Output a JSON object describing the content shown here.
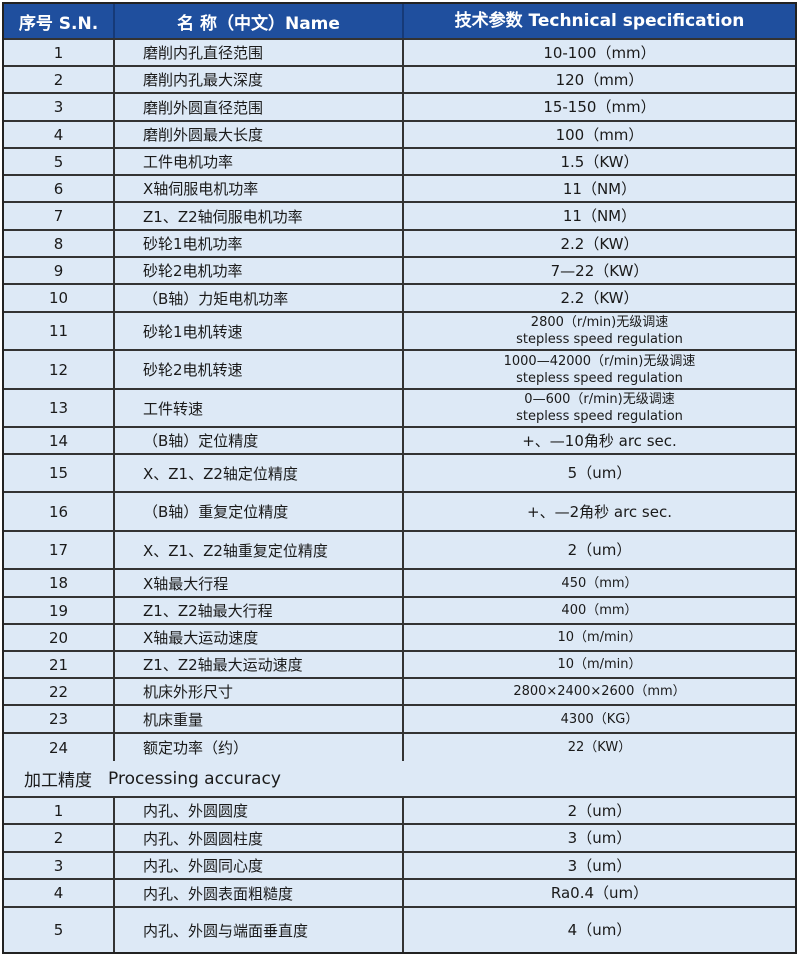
{
  "header": {
    "sn": "序号 S.N.",
    "name": "名 称（中文）Name",
    "spec": "技术参数 Technical specification"
  },
  "specs": [
    {
      "sn": "1",
      "name": "磨削内孔直径范围",
      "spec": [
        "10-100（mm）"
      ]
    },
    {
      "sn": "2",
      "name": "磨削内孔最大深度",
      "spec": [
        "120（mm）"
      ]
    },
    {
      "sn": "3",
      "name": "磨削外圆直径范围",
      "spec": [
        "15-150（mm）"
      ]
    },
    {
      "sn": "4",
      "name": "磨削外圆最大长度",
      "spec": [
        "100（mm）"
      ]
    },
    {
      "sn": "5",
      "name": "工件电机功率",
      "spec": [
        "1.5（KW）"
      ]
    },
    {
      "sn": "6",
      "name": "X轴伺服电机功率",
      "spec": [
        "11（NM）"
      ]
    },
    {
      "sn": "7",
      "name": "Z1、Z2轴伺服电机功率",
      "spec": [
        "11（NM）"
      ]
    },
    {
      "sn": "8",
      "name": "砂轮1电机功率",
      "spec": [
        "2.2（KW）"
      ]
    },
    {
      "sn": "9",
      "name": "砂轮2电机功率",
      "spec": [
        "7—22（KW）"
      ]
    },
    {
      "sn": "10",
      "name": "（B轴）力矩电机功率",
      "spec": [
        "2.2（KW）"
      ]
    },
    {
      "sn": "11",
      "name": "砂轮1电机转速",
      "spec": [
        "2800（r/min)无级调速",
        "stepless speed regulation"
      ]
    },
    {
      "sn": "12",
      "name": "砂轮2电机转速",
      "spec": [
        "1000—42000（r/min)无级调速",
        "stepless speed regulation"
      ]
    },
    {
      "sn": "13",
      "name": "工件转速",
      "spec": [
        "0—600（r/min)无级调速",
        "stepless speed regulation"
      ]
    },
    {
      "sn": "14",
      "name": "（B轴）定位精度",
      "spec": [
        "+、—10角秒 arc sec."
      ]
    },
    {
      "sn": "15",
      "name": "X、Z1、Z2轴定位精度",
      "spec": [
        "5（um）"
      ]
    },
    {
      "sn": "16",
      "name": "（B轴）重复定位精度",
      "spec": [
        "+、—2角秒 arc sec."
      ]
    },
    {
      "sn": "17",
      "name": "X、Z1、Z2轴重复定位精度",
      "spec": [
        "2（um）"
      ]
    },
    {
      "sn": "18",
      "name": "X轴最大行程",
      "spec": [
        "450（mm）"
      ]
    },
    {
      "sn": "19",
      "name": "Z1、Z2轴最大行程",
      "spec": [
        "400（mm）"
      ]
    },
    {
      "sn": "20",
      "name": "X轴最大运动速度",
      "spec": [
        "10（m/min）"
      ]
    },
    {
      "sn": "21",
      "name": "Z1、Z2轴最大运动速度",
      "spec": [
        "10（m/min）"
      ]
    },
    {
      "sn": "22",
      "name": "机床外形尺寸",
      "spec": [
        "2800×2400×2600（mm）"
      ]
    },
    {
      "sn": "23",
      "name": "机床重量",
      "spec": [
        "4300（KG）"
      ]
    },
    {
      "sn": "24",
      "name": "额定功率（约）",
      "spec": [
        "22（KW）"
      ]
    }
  ],
  "section": {
    "zh": "加工精度",
    "en": "Processing accuracy"
  },
  "accuracy": [
    {
      "sn": "1",
      "name": "内孔、外圆圆度",
      "spec": [
        "2（um）"
      ]
    },
    {
      "sn": "2",
      "name": "内孔、外圆圆柱度",
      "spec": [
        "3（um）"
      ]
    },
    {
      "sn": "3",
      "name": "内孔、外圆同心度",
      "spec": [
        "3（um）"
      ]
    },
    {
      "sn": "4",
      "name": "内孔、外圆表面粗糙度",
      "spec": [
        "Ra0.4（um）"
      ]
    },
    {
      "sn": "5",
      "name": "内孔、外圆与端面垂直度",
      "spec": [
        "4（um）"
      ]
    }
  ],
  "colors": {
    "header_bg": "#1f4f9e",
    "cell_bg": "#dde9f6"
  }
}
